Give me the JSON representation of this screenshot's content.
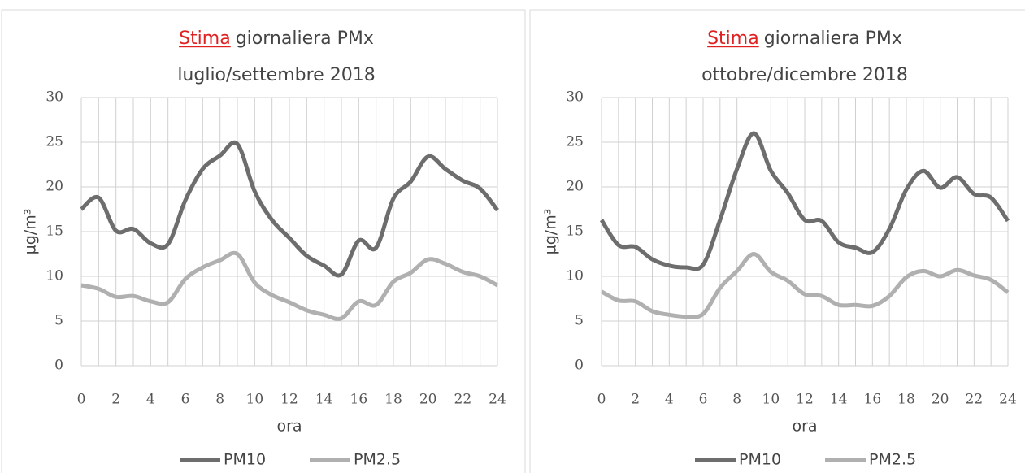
{
  "chart_data": [
    {
      "type": "line",
      "title_highlight": "Stima",
      "title": "giornaliera PMx",
      "subtitle": "luglio/settembre 2018",
      "xlabel": "ora",
      "ylabel": "µg/m³",
      "x": [
        0,
        1,
        2,
        3,
        4,
        5,
        6,
        7,
        8,
        9,
        10,
        11,
        12,
        13,
        14,
        15,
        16,
        17,
        18,
        19,
        20,
        21,
        22,
        23,
        24
      ],
      "series": [
        {
          "name": "PM10",
          "color": "#6d6d6d",
          "values": [
            17.5,
            18.8,
            15.1,
            15.3,
            13.7,
            13.6,
            18.5,
            22,
            23.5,
            24.8,
            19.5,
            16.3,
            14.3,
            12.3,
            11.2,
            10.2,
            14,
            13.2,
            18.7,
            20.6,
            23.4,
            22,
            20.7,
            19.8,
            17.4
          ]
        },
        {
          "name": "PM2.5",
          "color": "#b0b0b0",
          "values": [
            9,
            8.6,
            7.7,
            7.8,
            7.2,
            7.1,
            9.7,
            11,
            11.8,
            12.5,
            9.3,
            7.9,
            7.1,
            6.2,
            5.7,
            5.3,
            7.2,
            6.8,
            9.4,
            10.4,
            11.9,
            11.4,
            10.5,
            10,
            9
          ]
        }
      ],
      "xlim": [
        0,
        24
      ],
      "xticks": [
        0,
        2,
        4,
        6,
        8,
        10,
        12,
        14,
        16,
        18,
        20,
        22,
        24
      ],
      "ylim": [
        0,
        30
      ],
      "yticks": [
        0,
        5,
        10,
        15,
        20,
        25,
        30
      ],
      "grid": true,
      "legend": "bottom"
    },
    {
      "type": "line",
      "title_highlight": "Stima",
      "title": "giornaliera PMx",
      "subtitle": "ottobre/dicembre 2018",
      "xlabel": "ora",
      "ylabel": "µg/m³",
      "x": [
        0,
        1,
        2,
        3,
        4,
        5,
        6,
        7,
        8,
        9,
        10,
        11,
        12,
        13,
        14,
        15,
        16,
        17,
        18,
        19,
        20,
        21,
        22,
        23,
        24
      ],
      "series": [
        {
          "name": "PM10",
          "color": "#6d6d6d",
          "values": [
            16.3,
            13.5,
            13.3,
            11.9,
            11.2,
            11,
            11.3,
            16.3,
            22,
            26,
            21.8,
            19.3,
            16.3,
            16.2,
            13.8,
            13.2,
            12.7,
            15.3,
            19.7,
            21.8,
            19.9,
            21.1,
            19.2,
            18.8,
            16.2
          ]
        },
        {
          "name": "PM2.5",
          "color": "#b0b0b0",
          "values": [
            8.3,
            7.3,
            7.2,
            6.1,
            5.7,
            5.5,
            5.8,
            8.7,
            10.6,
            12.5,
            10.5,
            9.5,
            8,
            7.8,
            6.8,
            6.8,
            6.7,
            7.8,
            9.9,
            10.6,
            10,
            10.7,
            10.1,
            9.6,
            8.2
          ]
        }
      ],
      "xlim": [
        0,
        24
      ],
      "xticks": [
        0,
        2,
        4,
        6,
        8,
        10,
        12,
        14,
        16,
        18,
        20,
        22,
        24
      ],
      "ylim": [
        0,
        30
      ],
      "yticks": [
        0,
        5,
        10,
        15,
        20,
        25,
        30
      ],
      "grid": true,
      "legend": "bottom"
    }
  ]
}
